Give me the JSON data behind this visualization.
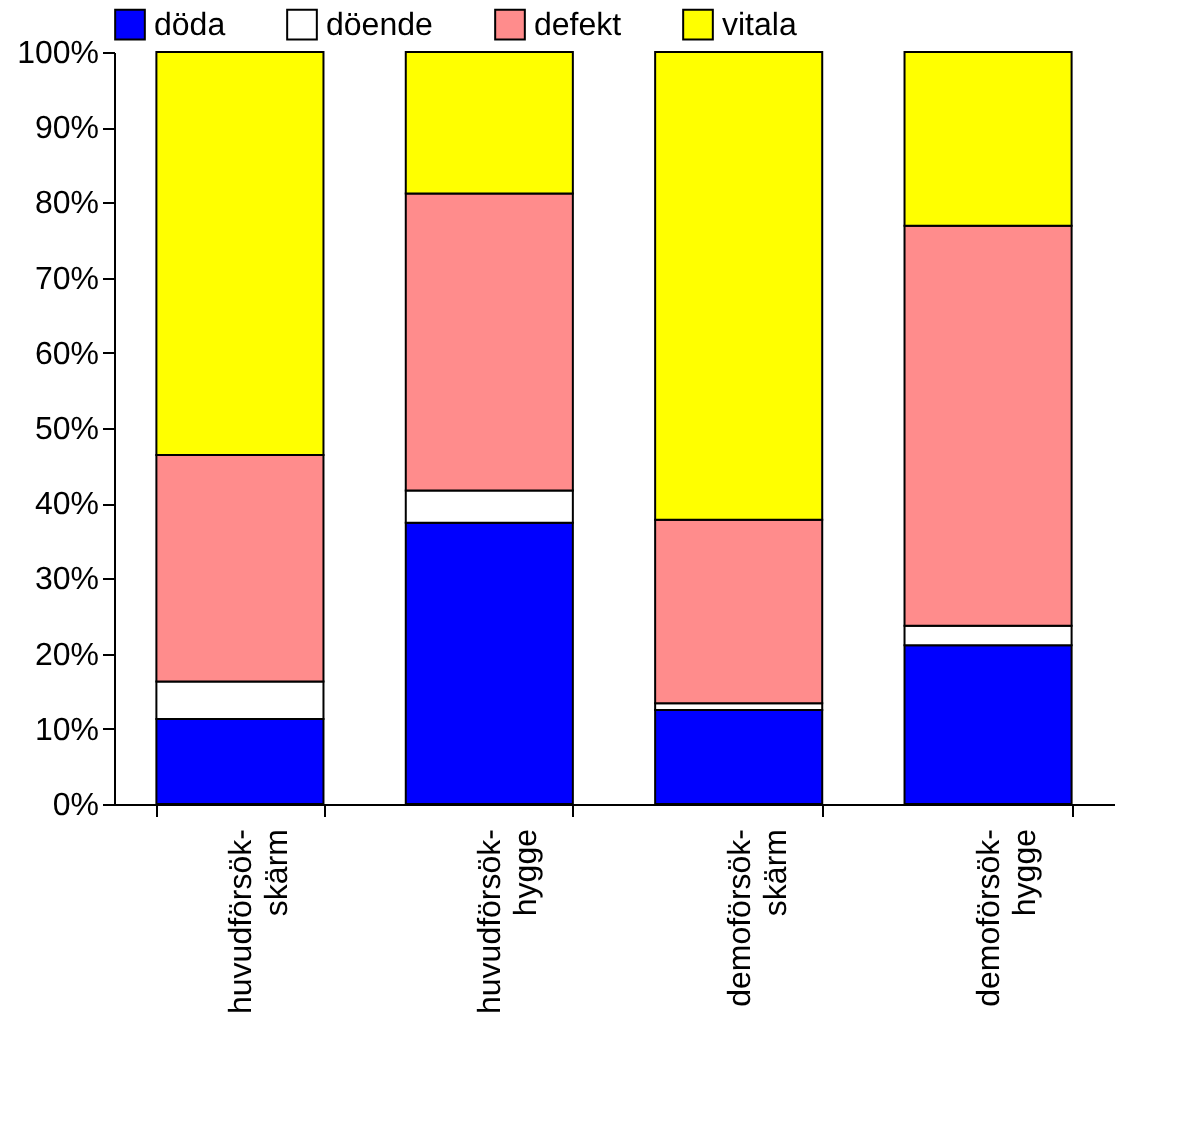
{
  "chart_data": {
    "type": "bar",
    "stacked": true,
    "categories": [
      "huvudförsök-\nskärm",
      "huvudförsök-\nhygge",
      "demoförsök-\nskärm",
      "demoförsök-\nhygge"
    ],
    "series": [
      {
        "name": "döda",
        "color": "#0000ff",
        "values": [
          11.3,
          37.4,
          12.5,
          21.1
        ]
      },
      {
        "name": "döende",
        "color": "#ffffff",
        "values": [
          5.0,
          4.3,
          0.9,
          2.6
        ]
      },
      {
        "name": "defekt",
        "color": "#ff8c8c",
        "values": [
          30.1,
          39.5,
          24.4,
          53.2
        ]
      },
      {
        "name": "vitala",
        "color": "#ffff00",
        "values": [
          53.6,
          18.8,
          62.2,
          23.1
        ]
      }
    ],
    "ylim": [
      0,
      100
    ],
    "yticks": [
      {
        "value": 0,
        "label": "0%"
      },
      {
        "value": 10,
        "label": "10%"
      },
      {
        "value": 20,
        "label": "20%"
      },
      {
        "value": 30,
        "label": "30%"
      },
      {
        "value": 40,
        "label": "40%"
      },
      {
        "value": 50,
        "label": "50%"
      },
      {
        "value": 60,
        "label": "60%"
      },
      {
        "value": 70,
        "label": "70%"
      },
      {
        "value": 80,
        "label": "80%"
      },
      {
        "value": 90,
        "label": "90%"
      },
      {
        "value": 100,
        "label": "100%"
      }
    ],
    "legend": "top",
    "grid": false
  }
}
